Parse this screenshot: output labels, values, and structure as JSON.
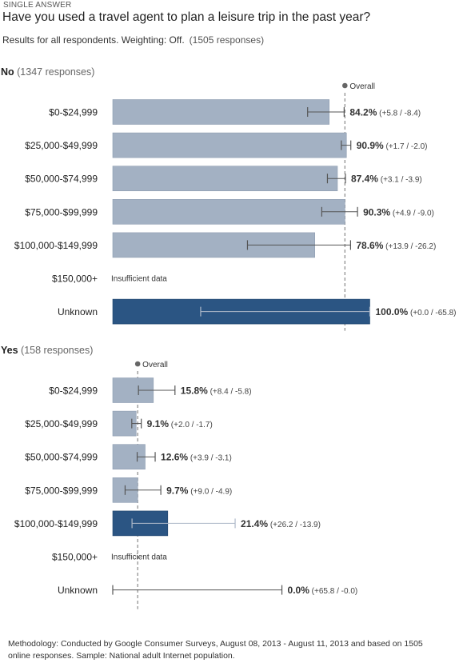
{
  "header": {
    "kicker": "SINGLE ANSWER",
    "question": "Have you used a travel agent to plan a leisure trip in the past year?",
    "results_for": "Results for all respondents. Weighting: Off.",
    "total_responses": "(1505 responses)"
  },
  "colors": {
    "bar_light": "#a3b1c3",
    "bar_dark": "#2b5583",
    "overall_line": "#888888",
    "error_bar": "#555555"
  },
  "chart_data": [
    {
      "type": "bar",
      "orientation": "horizontal",
      "group_label": "No",
      "group_responses": "(1347 responses)",
      "overall_label": "Overall",
      "overall_value": 90.3,
      "categories": [
        "$0-$24,999",
        "$25,000-$49,999",
        "$50,000-$74,999",
        "$75,000-$99,999",
        "$100,000-$149,999",
        "$150,000+",
        "Unknown"
      ],
      "values": [
        84.2,
        90.9,
        87.4,
        90.3,
        78.6,
        null,
        100.0
      ],
      "value_labels": [
        "84.2%",
        "90.9%",
        "87.4%",
        "90.3%",
        "78.6%",
        null,
        "100.0%"
      ],
      "error_labels": [
        "(+5.8 / -8.4)",
        "(+1.7 / -2.0)",
        "(+3.1 / -3.9)",
        "(+4.9 / -9.0)",
        "(+13.9 / -26.2)",
        null,
        "(+0.0 / -65.8)"
      ],
      "error_plus": [
        5.8,
        1.7,
        3.1,
        4.9,
        13.9,
        null,
        0.0
      ],
      "error_minus": [
        8.4,
        2.0,
        3.9,
        9.0,
        26.2,
        null,
        65.8
      ],
      "highlighted": [
        false,
        false,
        false,
        false,
        false,
        false,
        true
      ],
      "insufficient_label": "Insufficient data",
      "xlim": [
        0,
        100
      ]
    },
    {
      "type": "bar",
      "orientation": "horizontal",
      "group_label": "Yes",
      "group_responses": "(158 responses)",
      "overall_label": "Overall",
      "overall_value": 9.7,
      "categories": [
        "$0-$24,999",
        "$25,000-$49,999",
        "$50,000-$74,999",
        "$75,000-$99,999",
        "$100,000-$149,999",
        "$150,000+",
        "Unknown"
      ],
      "values": [
        15.8,
        9.1,
        12.6,
        9.7,
        21.4,
        null,
        0.0
      ],
      "value_labels": [
        "15.8%",
        "9.1%",
        "12.6%",
        "9.7%",
        "21.4%",
        null,
        "0.0%"
      ],
      "error_labels": [
        "(+8.4 / -5.8)",
        "(+2.0 / -1.7)",
        "(+3.9 / -3.1)",
        "(+9.0 / -4.9)",
        "(+26.2 / -13.9)",
        null,
        "(+65.8 / -0.0)"
      ],
      "error_plus": [
        8.4,
        2.0,
        3.9,
        9.0,
        26.2,
        null,
        65.8
      ],
      "error_minus": [
        5.8,
        1.7,
        3.1,
        4.9,
        13.9,
        null,
        0.0
      ],
      "highlighted": [
        false,
        false,
        false,
        false,
        true,
        false,
        false
      ],
      "insufficient_label": "Insufficient data",
      "xlim": [
        0,
        100
      ]
    }
  ],
  "footer": {
    "methodology": "Methodology: Conducted by Google Consumer Surveys, August 08, 2013 - August 11, 2013 and based on 1505 online responses. Sample: National adult Internet population."
  }
}
